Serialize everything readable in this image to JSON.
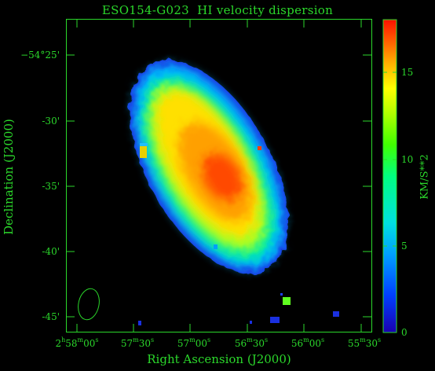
{
  "title": "ESO154-G023  HI velocity dispersion",
  "x_axis": {
    "label": "Right Ascension (J2000)",
    "ticks": [
      {
        "h": "2",
        "hs": "h",
        "m": "58",
        "ms": "m",
        "s": "00",
        "ss": "s"
      },
      {
        "h": "",
        "hs": "",
        "m": "57",
        "ms": "m",
        "s": "30",
        "ss": "s"
      },
      {
        "h": "",
        "hs": "",
        "m": "57",
        "ms": "m",
        "s": "00",
        "ss": "s"
      },
      {
        "h": "",
        "hs": "",
        "m": "56",
        "ms": "m",
        "s": "30",
        "ss": "s"
      },
      {
        "h": "",
        "hs": "",
        "m": "56",
        "ms": "m",
        "s": "00",
        "ss": "s"
      },
      {
        "h": "",
        "hs": "",
        "m": "55",
        "ms": "m",
        "s": "30",
        "ss": "s"
      }
    ]
  },
  "y_axis": {
    "label": "Declination (J2000)",
    "ticks": [
      "−54°25'",
      "-30'",
      "-35'",
      "-40'",
      "-45'"
    ]
  },
  "colorbar": {
    "label": "KM/S**2",
    "ticks": [
      "0",
      "5",
      "10",
      "15"
    ],
    "min": 0,
    "max": 18,
    "colormap": [
      "#1a00b0",
      "#0040ff",
      "#00a0ff",
      "#00e0e0",
      "#00ff80",
      "#40ff00",
      "#b0ff00",
      "#ffff00",
      "#ffb000",
      "#ff6000",
      "#ff1000"
    ]
  },
  "colors": {
    "axis": "#2bd82b",
    "background": "#000000"
  }
}
